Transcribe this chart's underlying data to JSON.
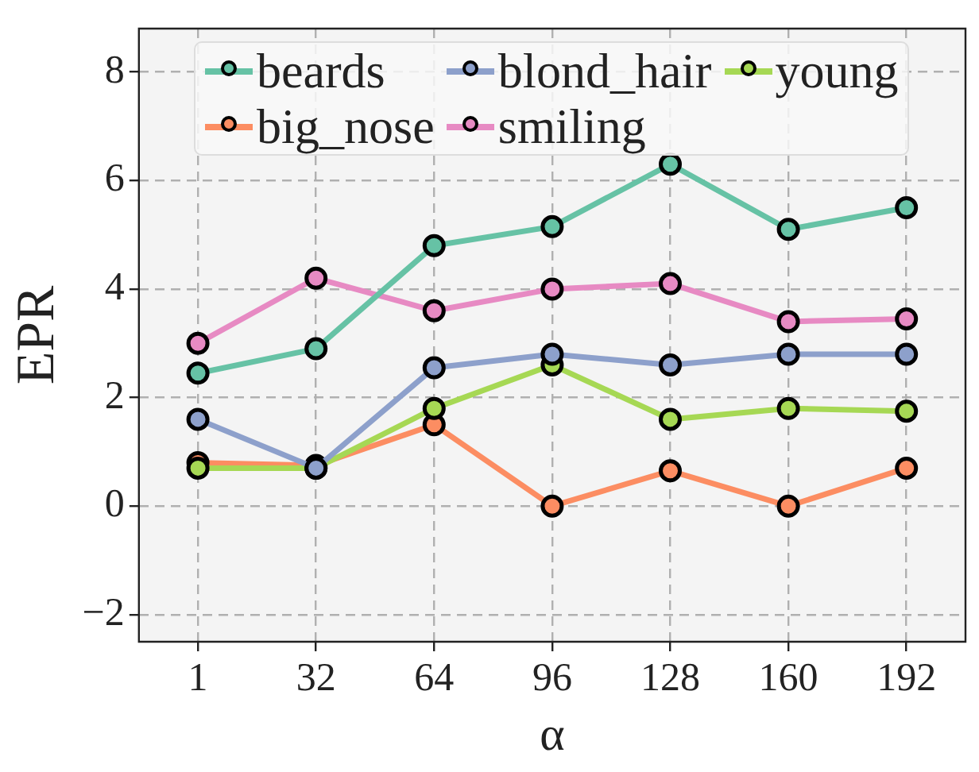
{
  "chart_data": {
    "type": "line",
    "xlabel": "α",
    "ylabel": "EPR",
    "categories": [
      "1",
      "32",
      "64",
      "96",
      "128",
      "160",
      "192"
    ],
    "series": [
      {
        "name": "beards",
        "color": "#66c2a5",
        "values": [
          2.45,
          2.9,
          4.8,
          5.15,
          6.3,
          5.1,
          5.5
        ]
      },
      {
        "name": "blond_hair",
        "color": "#8da0cb",
        "values": [
          1.6,
          0.7,
          2.55,
          2.8,
          2.6,
          2.8,
          2.8
        ]
      },
      {
        "name": "young",
        "color": "#a6d854",
        "values": [
          0.7,
          0.7,
          1.8,
          2.6,
          1.6,
          1.8,
          1.75
        ]
      },
      {
        "name": "big_nose",
        "color": "#fc8d62",
        "values": [
          0.8,
          0.75,
          1.5,
          0.0,
          0.65,
          0.0,
          0.7
        ]
      },
      {
        "name": "smiling",
        "color": "#e78ac3",
        "values": [
          3.0,
          4.2,
          3.6,
          4.0,
          4.1,
          3.4,
          3.45
        ]
      }
    ],
    "ylim": [
      -2.5,
      8.8
    ],
    "yticks": [
      -2,
      0,
      2,
      4,
      6,
      8
    ],
    "grid": true,
    "legend": "top",
    "marker": "circle",
    "line_style": "solid"
  }
}
